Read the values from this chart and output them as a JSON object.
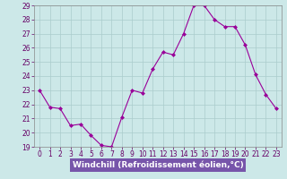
{
  "x": [
    0,
    1,
    2,
    3,
    4,
    5,
    6,
    7,
    8,
    9,
    10,
    11,
    12,
    13,
    14,
    15,
    16,
    17,
    18,
    19,
    20,
    21,
    22,
    23
  ],
  "y": [
    23.0,
    21.8,
    21.7,
    20.5,
    20.6,
    19.8,
    19.1,
    19.0,
    21.1,
    23.0,
    22.8,
    24.5,
    25.7,
    25.5,
    27.0,
    29.0,
    29.0,
    28.0,
    27.5,
    27.5,
    26.2,
    24.1,
    22.7,
    21.7
  ],
  "line_color": "#990099",
  "marker": "D",
  "marker_size": 2.0,
  "bg_color": "#cce8e8",
  "grid_color": "#aacccc",
  "ylim": [
    19,
    29
  ],
  "xlim": [
    -0.5,
    23.5
  ],
  "yticks": [
    19,
    20,
    21,
    22,
    23,
    24,
    25,
    26,
    27,
    28,
    29
  ],
  "xticks": [
    0,
    1,
    2,
    3,
    4,
    5,
    6,
    7,
    8,
    9,
    10,
    11,
    12,
    13,
    14,
    15,
    16,
    17,
    18,
    19,
    20,
    21,
    22,
    23
  ],
  "tick_color": "#660066",
  "tick_fontsize": 5.5,
  "xlabel": "Windchill (Refroidissement éolien,°C)",
  "xlabel_fontsize": 6.5,
  "xlabel_color": "white",
  "xlabel_bg_color": "#7755aa",
  "line_width": 0.8
}
